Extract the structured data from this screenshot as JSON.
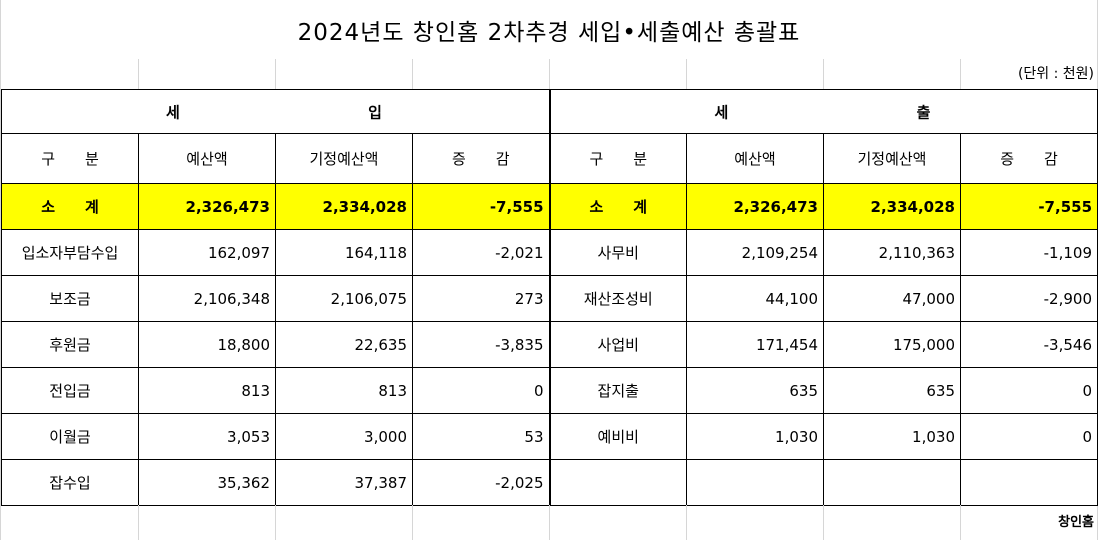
{
  "title": "2024년도 창인홈 2차추경 세입•세출예산 총괄표",
  "unit_label": "(단위 : 천원)",
  "org_label": "창인홈",
  "revenue": {
    "section_char1": "세",
    "section_char2": "입",
    "headers": [
      "구　　분",
      "예산액",
      "기정예산액",
      "증　　감"
    ],
    "subtotal": {
      "label": "소　　계",
      "budget": "2,326,473",
      "prior": "2,334,028",
      "change": "-7,555"
    },
    "rows": [
      {
        "label": "입소자부담수입",
        "budget": "162,097",
        "prior": "164,118",
        "change": "-2,021"
      },
      {
        "label": "보조금",
        "budget": "2,106,348",
        "prior": "2,106,075",
        "change": "273"
      },
      {
        "label": "후원금",
        "budget": "18,800",
        "prior": "22,635",
        "change": "-3,835"
      },
      {
        "label": "전입금",
        "budget": "813",
        "prior": "813",
        "change": "0"
      },
      {
        "label": "이월금",
        "budget": "3,053",
        "prior": "3,000",
        "change": "53"
      },
      {
        "label": "잡수입",
        "budget": "35,362",
        "prior": "37,387",
        "change": "-2,025"
      }
    ]
  },
  "expense": {
    "section_char1": "세",
    "section_char2": "출",
    "headers": [
      "구　　분",
      "예산액",
      "기정예산액",
      "증　　감"
    ],
    "subtotal": {
      "label": "소　　계",
      "budget": "2,326,473",
      "prior": "2,334,028",
      "change": "-7,555"
    },
    "rows": [
      {
        "label": "사무비",
        "budget": "2,109,254",
        "prior": "2,110,363",
        "change": "-1,109"
      },
      {
        "label": "재산조성비",
        "budget": "44,100",
        "prior": "47,000",
        "change": "-2,900"
      },
      {
        "label": "사업비",
        "budget": "171,454",
        "prior": "175,000",
        "change": "-3,546"
      },
      {
        "label": "잡지출",
        "budget": "635",
        "prior": "635",
        "change": "0"
      },
      {
        "label": "예비비",
        "budget": "1,030",
        "prior": "1,030",
        "change": "0"
      },
      {
        "label": "",
        "budget": "",
        "prior": "",
        "change": ""
      }
    ]
  }
}
